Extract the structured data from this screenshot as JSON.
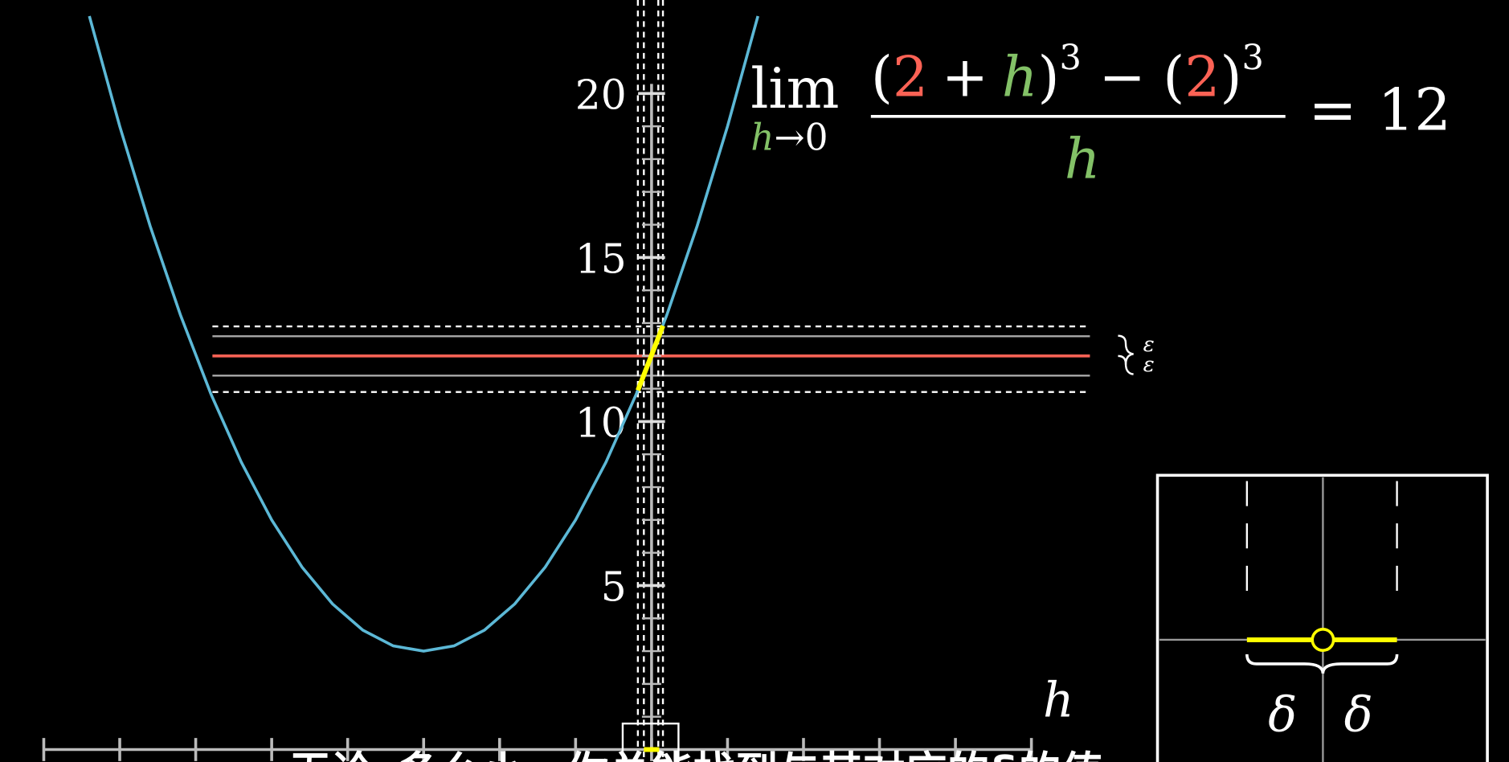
{
  "chart_data": {
    "type": "line",
    "x": [
      -7.4,
      -7.0,
      -6.6,
      -6.2,
      -5.8,
      -5.4,
      -5.0,
      -4.6,
      -4.2,
      -3.8,
      -3.4,
      -3.0,
      -2.6,
      -2.2,
      -1.8,
      -1.4,
      -1.0,
      -0.6,
      -0.2,
      0.2,
      0.6,
      1.0,
      1.4
    ],
    "values": [
      22.36,
      19,
      15.96,
      13.24,
      10.84,
      8.76,
      7,
      5.56,
      4.44,
      3.64,
      3.16,
      3,
      3.16,
      3.64,
      4.44,
      5.56,
      7,
      8.76,
      10.84,
      13.24,
      15.96,
      19,
      22.36
    ],
    "color": "#5cb8d6",
    "xlim": [
      -8.57,
      11.28
    ],
    "ylim": [
      -0.38,
      22.85
    ],
    "xticks": [
      -8,
      -7,
      -6,
      -5,
      -4,
      -3,
      -2,
      -1,
      0,
      1,
      2,
      3,
      4,
      5
    ],
    "yticks": [
      5,
      10,
      15,
      20
    ],
    "x_label": "h",
    "band": {
      "center": 12,
      "inner": [
        11.4,
        12.6
      ],
      "outer": [
        10.9,
        12.9
      ],
      "center_color": "#fc6255"
    },
    "highlight": {
      "x": [
        -0.18,
        0.15
      ],
      "y": [
        10.95,
        12.92
      ],
      "color": "#ffff00"
    },
    "epsilon_label": "ε",
    "delta_label": "δ",
    "formula": {
      "lim": "lim",
      "var": "h",
      "approach": "→0",
      "open": "(",
      "a": "2",
      "plus": "+",
      "close": ")",
      "pow": "3",
      "minus": "−",
      "equals": "=",
      "result": 12
    },
    "subtitle": "无论ε多么小，你总能找到与其对应的δ的值"
  }
}
